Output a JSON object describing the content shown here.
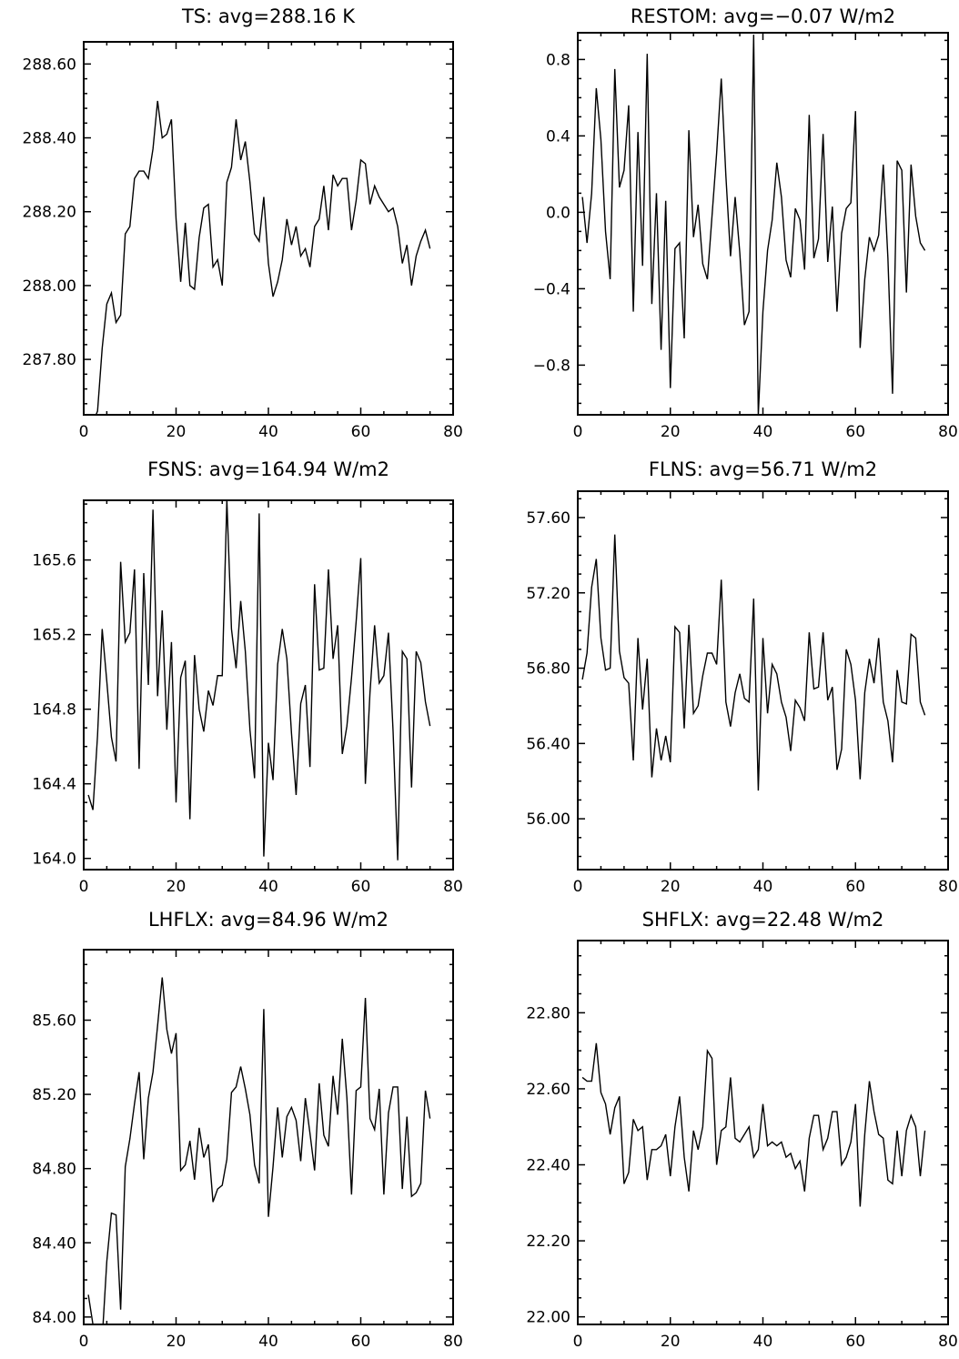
{
  "chart_data": [
    {
      "type": "line",
      "title": "TS: avg=288.16 K",
      "xlim": [
        0,
        80
      ],
      "ylim": [
        287.65,
        288.66
      ],
      "x_ticks": [
        "0",
        "20",
        "40",
        "60",
        "80"
      ],
      "y_ticks": [
        287.8,
        288.0,
        288.2,
        288.4,
        288.6
      ],
      "y_tick_labels": [
        "287.80",
        "288.00",
        "288.20",
        "288.40",
        "288.60"
      ],
      "y_minor_step": 0.04,
      "x": [
        1,
        2,
        3,
        4,
        5,
        6,
        7,
        8,
        9,
        10,
        11,
        12,
        13,
        14,
        15,
        16,
        17,
        18,
        19,
        20,
        21,
        22,
        23,
        24,
        25,
        26,
        27,
        28,
        29,
        30,
        31,
        32,
        33,
        34,
        35,
        36,
        37,
        38,
        39,
        40,
        41,
        42,
        43,
        44,
        45,
        46,
        47,
        48,
        49,
        50,
        51,
        52,
        53,
        54,
        55,
        56,
        57,
        58,
        59,
        60,
        61,
        62,
        63,
        64,
        65,
        66,
        67,
        68,
        69,
        70,
        71,
        72,
        73,
        74,
        75
      ],
      "values": [
        287.55,
        287.63,
        287.66,
        287.83,
        287.95,
        287.98,
        287.9,
        287.92,
        288.14,
        288.16,
        288.29,
        288.31,
        288.31,
        288.29,
        288.37,
        288.5,
        288.4,
        288.41,
        288.45,
        288.18,
        288.01,
        288.17,
        288.0,
        287.99,
        288.13,
        288.21,
        288.22,
        288.05,
        288.07,
        288.0,
        288.28,
        288.32,
        288.45,
        288.34,
        288.39,
        288.28,
        288.14,
        288.12,
        288.24,
        288.06,
        287.97,
        288.01,
        288.07,
        288.18,
        288.11,
        288.16,
        288.08,
        288.1,
        288.05,
        288.16,
        288.18,
        288.27,
        288.15,
        288.3,
        288.27,
        288.29,
        288.29,
        288.15,
        288.23,
        288.34,
        288.33,
        288.22,
        288.27,
        288.24,
        288.22,
        288.2,
        288.21,
        288.16,
        288.06,
        288.11,
        288.0,
        288.08,
        288.12,
        288.15,
        288.1
      ]
    },
    {
      "type": "line",
      "title": "RESTOM: avg=−0.07 W/m2",
      "xlim": [
        0,
        80
      ],
      "ylim": [
        -1.06,
        0.94
      ],
      "x_ticks": [
        "0",
        "20",
        "40",
        "60",
        "80"
      ],
      "y_ticks": [
        -0.8,
        -0.4,
        0.0,
        0.4,
        0.8
      ],
      "y_tick_labels": [
        "−0.8",
        "−0.4",
        "0.0",
        "0.4",
        "0.8"
      ],
      "y_minor_step": 0.1,
      "x": [
        1,
        2,
        3,
        4,
        5,
        6,
        7,
        8,
        9,
        10,
        11,
        12,
        13,
        14,
        15,
        16,
        17,
        18,
        19,
        20,
        21,
        22,
        23,
        24,
        25,
        26,
        27,
        28,
        29,
        30,
        31,
        32,
        33,
        34,
        35,
        36,
        37,
        38,
        39,
        40,
        41,
        42,
        43,
        44,
        45,
        46,
        47,
        48,
        49,
        50,
        51,
        52,
        53,
        54,
        55,
        56,
        57,
        58,
        59,
        60,
        61,
        62,
        63,
        64,
        65,
        66,
        67,
        68,
        69,
        70,
        71,
        72,
        73,
        74,
        75
      ],
      "values": [
        0.08,
        -0.16,
        0.1,
        0.65,
        0.38,
        -0.1,
        -0.35,
        0.75,
        0.13,
        0.22,
        0.56,
        -0.52,
        0.42,
        -0.28,
        0.83,
        -0.48,
        0.1,
        -0.72,
        0.06,
        -0.92,
        -0.19,
        -0.16,
        -0.66,
        0.43,
        -0.13,
        0.04,
        -0.27,
        -0.35,
        -0.02,
        0.31,
        0.7,
        0.19,
        -0.23,
        0.08,
        -0.21,
        -0.59,
        -0.52,
        0.93,
        -1.06,
        -0.52,
        -0.2,
        -0.04,
        0.26,
        0.08,
        -0.25,
        -0.34,
        0.02,
        -0.04,
        -0.3,
        0.51,
        -0.24,
        -0.14,
        0.41,
        -0.26,
        0.03,
        -0.52,
        -0.11,
        0.02,
        0.05,
        0.53,
        -0.71,
        -0.35,
        -0.13,
        -0.2,
        -0.12,
        0.25,
        -0.24,
        -0.95,
        0.27,
        0.22,
        -0.42,
        0.25,
        -0.02,
        -0.16,
        -0.2
      ]
    },
    {
      "type": "line",
      "title": "FSNS: avg=164.94 W/m2",
      "xlim": [
        0,
        80
      ],
      "ylim": [
        163.94,
        165.92
      ],
      "x_ticks": [
        "0",
        "20",
        "40",
        "60",
        "80"
      ],
      "y_ticks": [
        164.0,
        164.4,
        164.8,
        165.2,
        165.6
      ],
      "y_tick_labels": [
        "164.0",
        "164.4",
        "164.8",
        "165.2",
        "165.6"
      ],
      "y_minor_step": 0.1,
      "x": [
        1,
        2,
        3,
        4,
        5,
        6,
        7,
        8,
        9,
        10,
        11,
        12,
        13,
        14,
        15,
        16,
        17,
        18,
        19,
        20,
        21,
        22,
        23,
        24,
        25,
        26,
        27,
        28,
        29,
        30,
        31,
        32,
        33,
        34,
        35,
        36,
        37,
        38,
        39,
        40,
        41,
        42,
        43,
        44,
        45,
        46,
        47,
        48,
        49,
        50,
        51,
        52,
        53,
        54,
        55,
        56,
        57,
        58,
        59,
        60,
        61,
        62,
        63,
        64,
        65,
        66,
        67,
        68,
        69,
        70,
        71,
        72,
        73,
        74,
        75
      ],
      "values": [
        164.34,
        164.26,
        164.66,
        165.23,
        164.95,
        164.65,
        164.52,
        165.59,
        165.16,
        165.21,
        165.55,
        164.48,
        165.53,
        164.93,
        165.87,
        164.87,
        165.33,
        164.69,
        165.16,
        164.3,
        164.97,
        165.06,
        164.21,
        165.09,
        164.8,
        164.68,
        164.9,
        164.82,
        164.98,
        164.98,
        165.92,
        165.23,
        165.02,
        165.38,
        165.11,
        164.69,
        164.43,
        165.85,
        164.01,
        164.62,
        164.42,
        165.04,
        165.23,
        165.07,
        164.67,
        164.34,
        164.83,
        164.93,
        164.49,
        165.47,
        165.01,
        165.02,
        165.55,
        165.07,
        165.25,
        164.56,
        164.71,
        164.97,
        165.27,
        165.61,
        164.4,
        164.89,
        165.25,
        164.94,
        164.98,
        165.21,
        164.68,
        163.99,
        165.11,
        165.07,
        164.38,
        165.11,
        165.05,
        164.84,
        164.71
      ]
    },
    {
      "type": "line",
      "title": "FLNS: avg=56.71 W/m2",
      "xlim": [
        0,
        80
      ],
      "ylim": [
        55.73,
        57.74
      ],
      "x_ticks": [
        "0",
        "20",
        "40",
        "60",
        "80"
      ],
      "y_ticks": [
        56.0,
        56.4,
        56.8,
        57.2,
        57.6
      ],
      "y_tick_labels": [
        "56.00",
        "56.40",
        "56.80",
        "57.20",
        "57.60"
      ],
      "y_minor_step": 0.1,
      "x": [
        1,
        2,
        3,
        4,
        5,
        6,
        7,
        8,
        9,
        10,
        11,
        12,
        13,
        14,
        15,
        16,
        17,
        18,
        19,
        20,
        21,
        22,
        23,
        24,
        25,
        26,
        27,
        28,
        29,
        30,
        31,
        32,
        33,
        34,
        35,
        36,
        37,
        38,
        39,
        40,
        41,
        42,
        43,
        44,
        45,
        46,
        47,
        48,
        49,
        50,
        51,
        52,
        53,
        54,
        55,
        56,
        57,
        58,
        59,
        60,
        61,
        62,
        63,
        64,
        65,
        66,
        67,
        68,
        69,
        70,
        71,
        72,
        73,
        74,
        75
      ],
      "values": [
        56.74,
        56.88,
        57.23,
        57.38,
        56.96,
        56.79,
        56.8,
        57.51,
        56.89,
        56.75,
        56.72,
        56.31,
        56.96,
        56.58,
        56.85,
        56.22,
        56.48,
        56.31,
        56.44,
        56.3,
        57.02,
        56.99,
        56.48,
        57.03,
        56.56,
        56.6,
        56.76,
        56.88,
        56.88,
        56.82,
        57.27,
        56.62,
        56.49,
        56.67,
        56.77,
        56.64,
        56.62,
        57.17,
        56.15,
        56.96,
        56.56,
        56.82,
        56.77,
        56.62,
        56.54,
        56.36,
        56.63,
        56.59,
        56.52,
        56.99,
        56.69,
        56.7,
        56.99,
        56.63,
        56.7,
        56.26,
        56.37,
        56.9,
        56.82,
        56.63,
        56.21,
        56.67,
        56.85,
        56.72,
        56.96,
        56.62,
        56.52,
        56.3,
        56.79,
        56.62,
        56.61,
        56.98,
        56.96,
        56.62,
        56.55
      ]
    },
    {
      "type": "line",
      "title": "LHFLX: avg=84.96 W/m2",
      "xlim": [
        0,
        80
      ],
      "ylim": [
        83.96,
        85.98
      ],
      "x_ticks": [
        "0",
        "20",
        "40",
        "60",
        "80"
      ],
      "y_ticks": [
        84.0,
        84.4,
        84.8,
        85.2,
        85.6
      ],
      "y_tick_labels": [
        "84.00",
        "84.40",
        "84.80",
        "85.20",
        "85.60"
      ],
      "y_minor_step": 0.1,
      "x": [
        1,
        2,
        3,
        4,
        5,
        6,
        7,
        8,
        9,
        10,
        11,
        12,
        13,
        14,
        15,
        16,
        17,
        18,
        19,
        20,
        21,
        22,
        23,
        24,
        25,
        26,
        27,
        28,
        29,
        30,
        31,
        32,
        33,
        34,
        35,
        36,
        37,
        38,
        39,
        40,
        41,
        42,
        43,
        44,
        45,
        46,
        47,
        48,
        49,
        50,
        51,
        52,
        53,
        54,
        55,
        56,
        57,
        58,
        59,
        60,
        61,
        62,
        63,
        64,
        65,
        66,
        67,
        68,
        69,
        70,
        71,
        72,
        73,
        74,
        75
      ],
      "values": [
        84.12,
        83.96,
        83.93,
        83.88,
        84.3,
        84.56,
        84.55,
        84.04,
        84.81,
        84.96,
        85.15,
        85.32,
        84.85,
        85.18,
        85.32,
        85.57,
        85.83,
        85.55,
        85.42,
        85.53,
        84.79,
        84.82,
        84.95,
        84.74,
        85.02,
        84.86,
        84.93,
        84.62,
        84.69,
        84.71,
        84.85,
        85.21,
        85.24,
        85.35,
        85.23,
        85.09,
        84.82,
        84.72,
        85.66,
        84.54,
        84.81,
        85.13,
        84.86,
        85.08,
        85.13,
        85.06,
        84.84,
        85.18,
        84.99,
        84.79,
        85.26,
        84.98,
        84.92,
        85.3,
        85.09,
        85.5,
        85.18,
        84.66,
        85.22,
        85.24,
        85.72,
        85.07,
        85.01,
        85.23,
        84.66,
        85.1,
        85.24,
        85.24,
        84.69,
        85.08,
        84.65,
        84.67,
        84.72,
        85.22,
        85.07
      ]
    },
    {
      "type": "line",
      "title": "SHFLX: avg=22.48 W/m2",
      "xlim": [
        0,
        80
      ],
      "ylim": [
        21.98,
        22.99
      ],
      "x_ticks": [
        "0",
        "20",
        "40",
        "60",
        "80"
      ],
      "y_ticks": [
        22.0,
        22.2,
        22.4,
        22.6,
        22.8
      ],
      "y_tick_labels": [
        "22.00",
        "22.20",
        "22.40",
        "22.60",
        "22.80"
      ],
      "y_minor_step": 0.05,
      "x": [
        1,
        2,
        3,
        4,
        5,
        6,
        7,
        8,
        9,
        10,
        11,
        12,
        13,
        14,
        15,
        16,
        17,
        18,
        19,
        20,
        21,
        22,
        23,
        24,
        25,
        26,
        27,
        28,
        29,
        30,
        31,
        32,
        33,
        34,
        35,
        36,
        37,
        38,
        39,
        40,
        41,
        42,
        43,
        44,
        45,
        46,
        47,
        48,
        49,
        50,
        51,
        52,
        53,
        54,
        55,
        56,
        57,
        58,
        59,
        60,
        61,
        62,
        63,
        64,
        65,
        66,
        67,
        68,
        69,
        70,
        71,
        72,
        73,
        74,
        75
      ],
      "values": [
        22.63,
        22.62,
        22.62,
        22.72,
        22.59,
        22.56,
        22.48,
        22.55,
        22.58,
        22.35,
        22.38,
        22.52,
        22.49,
        22.5,
        22.36,
        22.44,
        22.44,
        22.45,
        22.48,
        22.37,
        22.5,
        22.58,
        22.42,
        22.33,
        22.49,
        22.44,
        22.5,
        22.7,
        22.68,
        22.4,
        22.49,
        22.5,
        22.63,
        22.47,
        22.46,
        22.48,
        22.5,
        22.42,
        22.44,
        22.56,
        22.45,
        22.46,
        22.45,
        22.46,
        22.42,
        22.43,
        22.39,
        22.41,
        22.33,
        22.47,
        22.53,
        22.53,
        22.44,
        22.47,
        22.54,
        22.54,
        22.4,
        22.42,
        22.46,
        22.56,
        22.29,
        22.48,
        22.62,
        22.54,
        22.48,
        22.47,
        22.36,
        22.35,
        22.49,
        22.37,
        22.49,
        22.53,
        22.5,
        22.37,
        22.49
      ]
    }
  ]
}
